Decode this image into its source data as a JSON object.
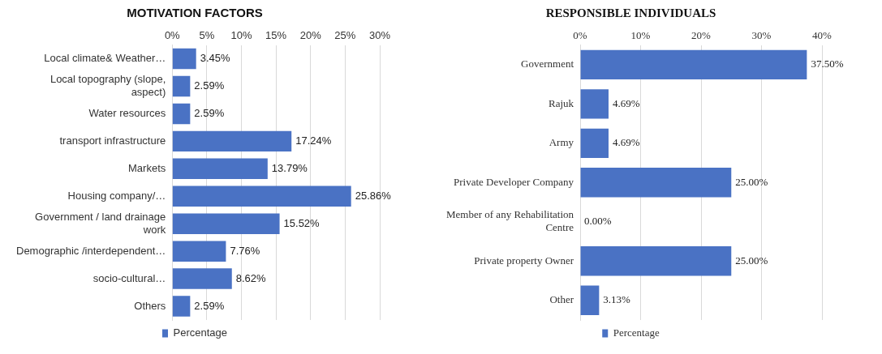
{
  "chart_data": [
    {
      "type": "bar",
      "title": "MOTIVATION FACTORS",
      "orientation": "horizontal",
      "categories": [
        "Local climate& Weather…",
        "Local topography (slope, aspect)",
        "Water resources",
        "transport infrastructure",
        "Markets",
        "Housing company/…",
        "Government / land drainage work",
        "Demographic /interdependent…",
        "socio-cultural…",
        "Others"
      ],
      "series": [
        {
          "name": "Percentage",
          "color": "#4a72c4",
          "values": [
            3.45,
            2.59,
            2.59,
            17.24,
            13.79,
            25.86,
            15.52,
            7.76,
            8.62,
            2.59
          ],
          "value_labels": [
            "3.45%",
            "2.59%",
            "2.59%",
            "17.24%",
            "13.79%",
            "25.86%",
            "15.52%",
            "7.76%",
            "8.62%",
            "2.59%"
          ]
        }
      ],
      "xlim": [
        0,
        30
      ],
      "xticks": [
        {
          "value": 0,
          "label": "0%"
        },
        {
          "value": 5,
          "label": "5%"
        },
        {
          "value": 10,
          "label": "10%"
        },
        {
          "value": 15,
          "label": "15%"
        },
        {
          "value": 20,
          "label": "20%"
        },
        {
          "value": 25,
          "label": "25%"
        },
        {
          "value": 30,
          "label": "30%"
        }
      ],
      "grid": "x",
      "legend": "bottom"
    },
    {
      "type": "bar",
      "title": "RESPONSIBLE INDIVIDUALS",
      "orientation": "horizontal",
      "categories": [
        "Government",
        "Rajuk",
        "Army",
        "Private Developer Company",
        "Member of any Rehabilitation Centre",
        "Private property Owner",
        "Other"
      ],
      "series": [
        {
          "name": "Percentage",
          "color": "#4a72c4",
          "values": [
            37.5,
            4.69,
            4.69,
            25,
            0,
            25,
            3.13
          ],
          "value_labels": [
            "37.50%",
            "4.69%",
            "4.69%",
            "25.00%",
            "0.00%",
            "25.00%",
            "3.13%"
          ]
        }
      ],
      "xlim": [
        0,
        40
      ],
      "xticks": [
        {
          "value": 0,
          "label": "0%"
        },
        {
          "value": 10,
          "label": "10%"
        },
        {
          "value": 20,
          "label": "20%"
        },
        {
          "value": 30,
          "label": "30%"
        },
        {
          "value": 40,
          "label": "40%"
        }
      ],
      "grid": "x",
      "legend": "bottom"
    }
  ]
}
